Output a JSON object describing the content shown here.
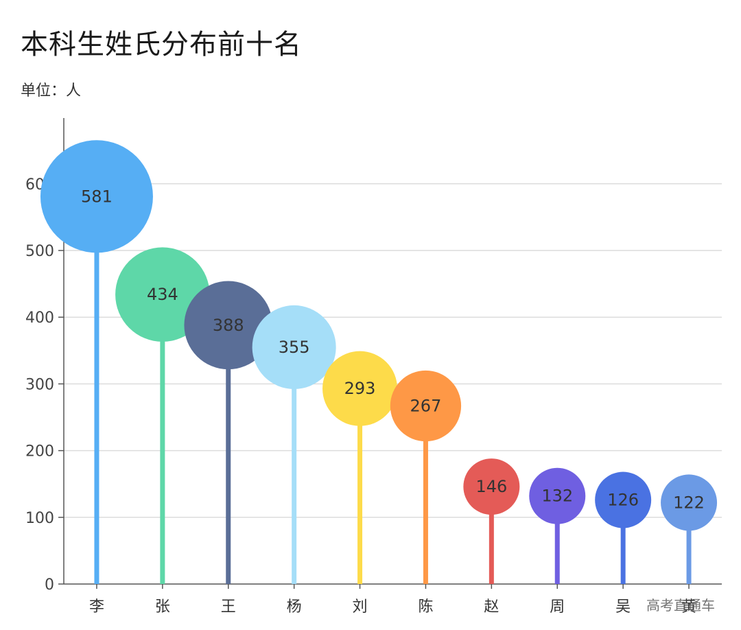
{
  "header": {
    "title": "本科生姓氏分布前十名",
    "unit": "单位：人"
  },
  "watermark": "高考直通车",
  "chart_data": {
    "type": "lollipop-bubble",
    "title": "本科生姓氏分布前十名",
    "subtitle": "单位：人",
    "xlabel": "",
    "ylabel": "",
    "categories": [
      "李",
      "张",
      "王",
      "杨",
      "刘",
      "陈",
      "赵",
      "周",
      "吴",
      "黄"
    ],
    "values": [
      581,
      434,
      388,
      355,
      293,
      267,
      146,
      132,
      126,
      122
    ],
    "colors": [
      "#56aef4",
      "#5ed7a8",
      "#5a6e97",
      "#a5def8",
      "#fddb4a",
      "#fe9846",
      "#e45b57",
      "#6f5fe1",
      "#4a72e2",
      "#6b9ae5"
    ],
    "yticks": [
      0,
      100,
      200,
      300,
      400,
      500,
      600
    ],
    "ylim": [
      0,
      700
    ],
    "grid": true,
    "legend": "none"
  }
}
